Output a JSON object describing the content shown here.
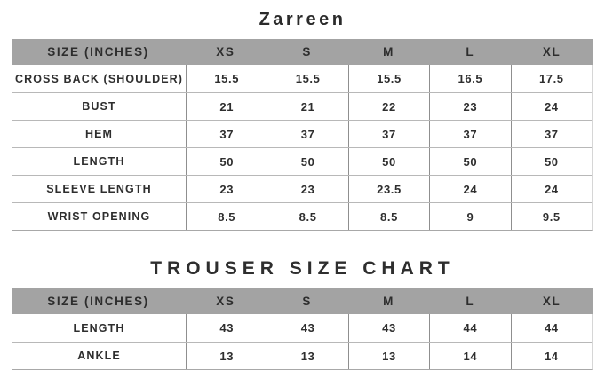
{
  "page": {
    "brand_title": "Zarreen"
  },
  "colors": {
    "header_bg": "#a3a3a3",
    "text": "#2e2e2e",
    "row_border": "#b8b8b8",
    "col_border": "#8f8f8f",
    "background": "#ffffff"
  },
  "size_chart": {
    "columns": [
      "SIZE (INCHES)",
      "XS",
      "S",
      "M",
      "L",
      "XL"
    ],
    "rows": [
      {
        "label": "CROSS BACK (SHOULDER)",
        "values": [
          "15.5",
          "15.5",
          "15.5",
          "16.5",
          "17.5"
        ]
      },
      {
        "label": "BUST",
        "values": [
          "21",
          "21",
          "22",
          "23",
          "24"
        ]
      },
      {
        "label": "HEM",
        "values": [
          "37",
          "37",
          "37",
          "37",
          "37"
        ]
      },
      {
        "label": "LENGTH",
        "values": [
          "50",
          "50",
          "50",
          "50",
          "50"
        ]
      },
      {
        "label": "SLEEVE LENGTH",
        "values": [
          "23",
          "23",
          "23.5",
          "24",
          "24"
        ]
      },
      {
        "label": "WRIST OPENING",
        "values": [
          "8.5",
          "8.5",
          "8.5",
          "9",
          "9.5"
        ]
      }
    ]
  },
  "trouser_chart": {
    "title": "TROUSER SIZE CHART",
    "columns": [
      "SIZE (INCHES)",
      "XS",
      "S",
      "M",
      "L",
      "XL"
    ],
    "rows": [
      {
        "label": "LENGTH",
        "values": [
          "43",
          "43",
          "43",
          "44",
          "44"
        ]
      },
      {
        "label": "ANKLE",
        "values": [
          "13",
          "13",
          "13",
          "14",
          "14"
        ]
      }
    ]
  }
}
